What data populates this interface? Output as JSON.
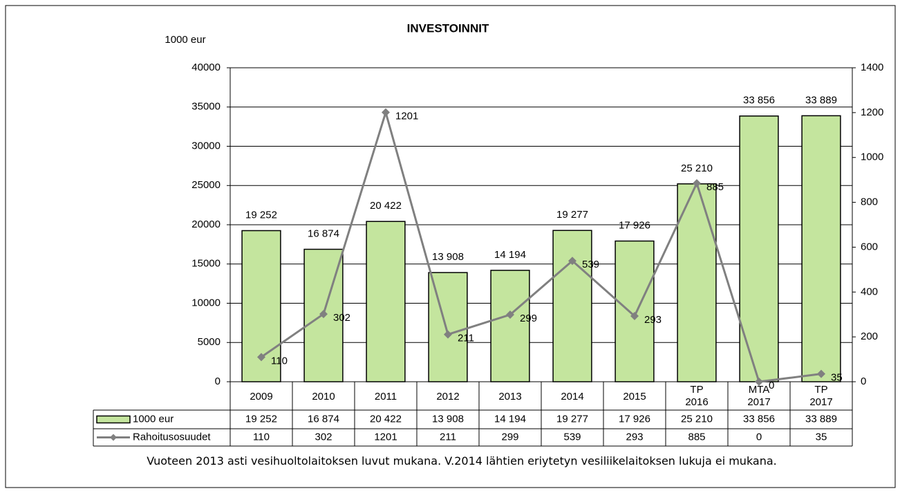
{
  "chart_data": {
    "type": "bar",
    "title": "INVESTOINNIT",
    "y_label": "1000 eur",
    "categories": [
      "2009",
      "2010",
      "2011",
      "2012",
      "2013",
      "2014",
      "2015",
      "TP 2016",
      "MTA 2017",
      "TP 2017"
    ],
    "series": [
      {
        "name": "1000 eur",
        "color": "#c4e59e",
        "values": [
          19252,
          16874,
          20422,
          13908,
          14194,
          19277,
          17926,
          25210,
          33856,
          33889
        ],
        "value_labels": [
          "19 252",
          "16 874",
          "20 422",
          "13 908",
          "14 194",
          "19 277",
          "17 926",
          "25 210",
          "33 856",
          "33 889"
        ]
      },
      {
        "name": "Rahoitusosuudet",
        "type": "line",
        "axis": "y2",
        "color": "#808080",
        "values": [
          110,
          302,
          1201,
          211,
          299,
          539,
          293,
          885,
          0,
          35
        ]
      }
    ],
    "ylim": [
      0,
      40000
    ],
    "yticks": [
      0,
      5000,
      10000,
      15000,
      20000,
      25000,
      30000,
      35000,
      40000
    ],
    "y2lim": [
      0,
      1400
    ],
    "y2ticks": [
      0,
      200,
      400,
      600,
      800,
      1000,
      1200,
      1400
    ],
    "grid": true,
    "note": "Vuoteen 2013 asti vesihuoltolaitoksen luvut mukana. V.2014 lähtien eriytetyn vesiliikelaitoksen lukuja ei mukana."
  }
}
